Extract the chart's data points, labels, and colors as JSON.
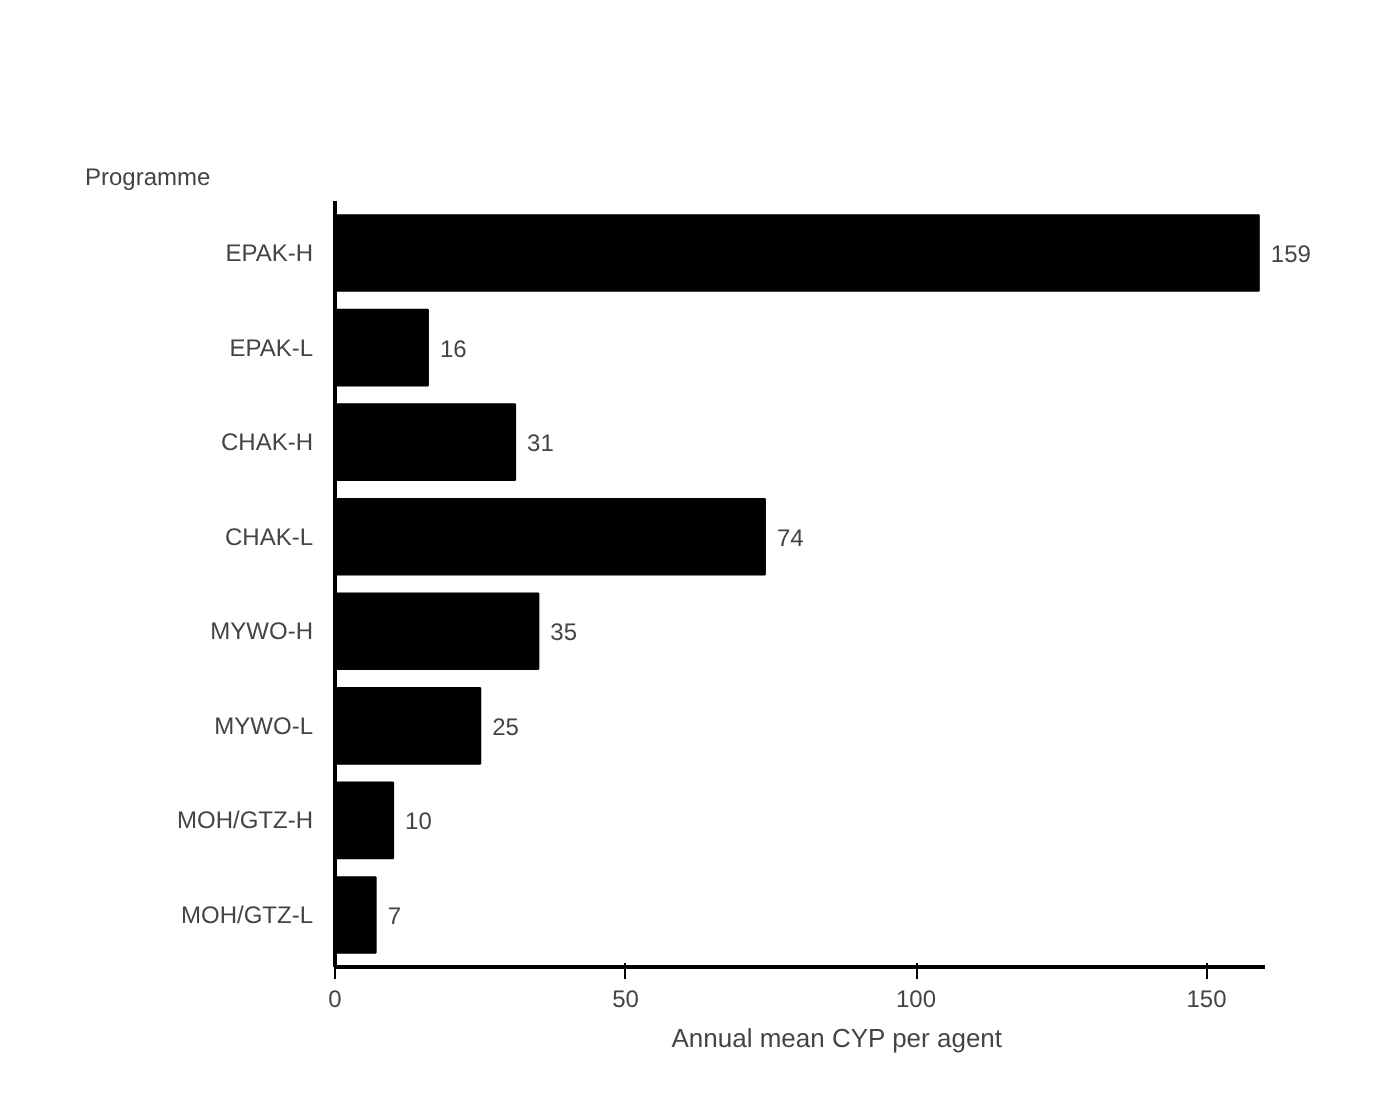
{
  "chart_data": {
    "type": "bar",
    "orientation": "horizontal",
    "ylabel": "Programme",
    "xlabel": "Annual mean CYP per agent",
    "categories": [
      "EPAK-H",
      "EPAK-L",
      "CHAK-H",
      "CHAK-L",
      "MYWO-H",
      "MYWO-L",
      "MOH/GTZ-H",
      "MOH/GTZ-L"
    ],
    "values": [
      159,
      16,
      31,
      74,
      35,
      25,
      10,
      7
    ],
    "color": "#000000",
    "xlim": [
      0,
      160
    ],
    "xticks": [
      0,
      50,
      100,
      150
    ],
    "data_labels": true,
    "grid": false
  }
}
